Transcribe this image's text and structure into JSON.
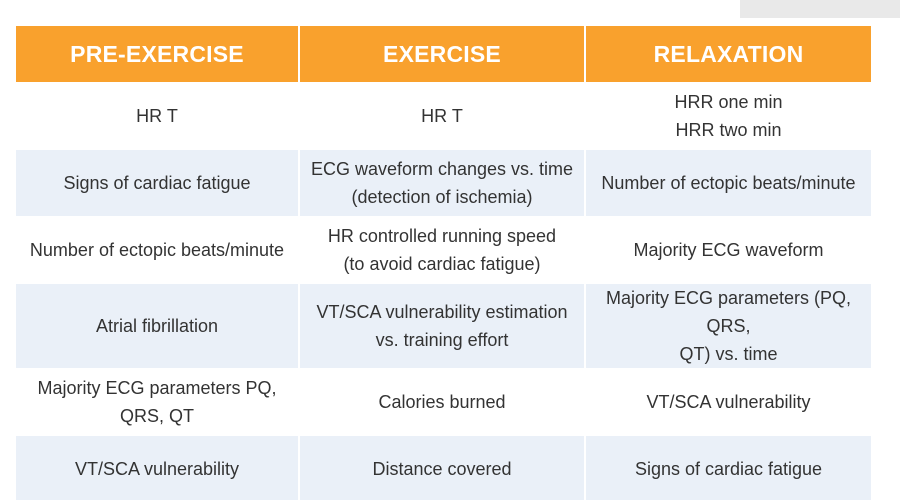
{
  "table": {
    "headers": [
      "PRE-EXERCISE",
      "EXERCISE",
      "RELAXATION"
    ],
    "rows": [
      [
        [
          "HR T"
        ],
        [
          "HR T"
        ],
        [
          "HRR one min",
          "HRR two min"
        ]
      ],
      [
        [
          "Signs of cardiac fatigue"
        ],
        [
          "ECG waveform changes vs. time",
          "(detection of ischemia)"
        ],
        [
          "Number of ectopic beats/minute"
        ]
      ],
      [
        [
          "Number of ectopic beats/minute"
        ],
        [
          "HR controlled running speed",
          "(to avoid cardiac fatigue)"
        ],
        [
          "Majority ECG waveform"
        ]
      ],
      [
        [
          "Atrial fibrillation"
        ],
        [
          "VT/SCA vulnerability estimation",
          "vs. training effort"
        ],
        [
          "Majority ECG parameters (PQ, QRS,",
          "QT) vs. time"
        ]
      ],
      [
        [
          "Majority ECG parameters PQ, QRS, QT"
        ],
        [
          "Calories burned"
        ],
        [
          "VT/SCA vulnerability"
        ]
      ],
      [
        [
          "VT/SCA vulnerability"
        ],
        [
          "Distance covered"
        ],
        [
          "Signs of cardiac fatigue"
        ]
      ]
    ]
  },
  "colors": {
    "header_bg": "#f9a12d",
    "header_text": "#ffffff",
    "row_alt_bg": "#eaf0f8",
    "body_text": "#333333"
  }
}
